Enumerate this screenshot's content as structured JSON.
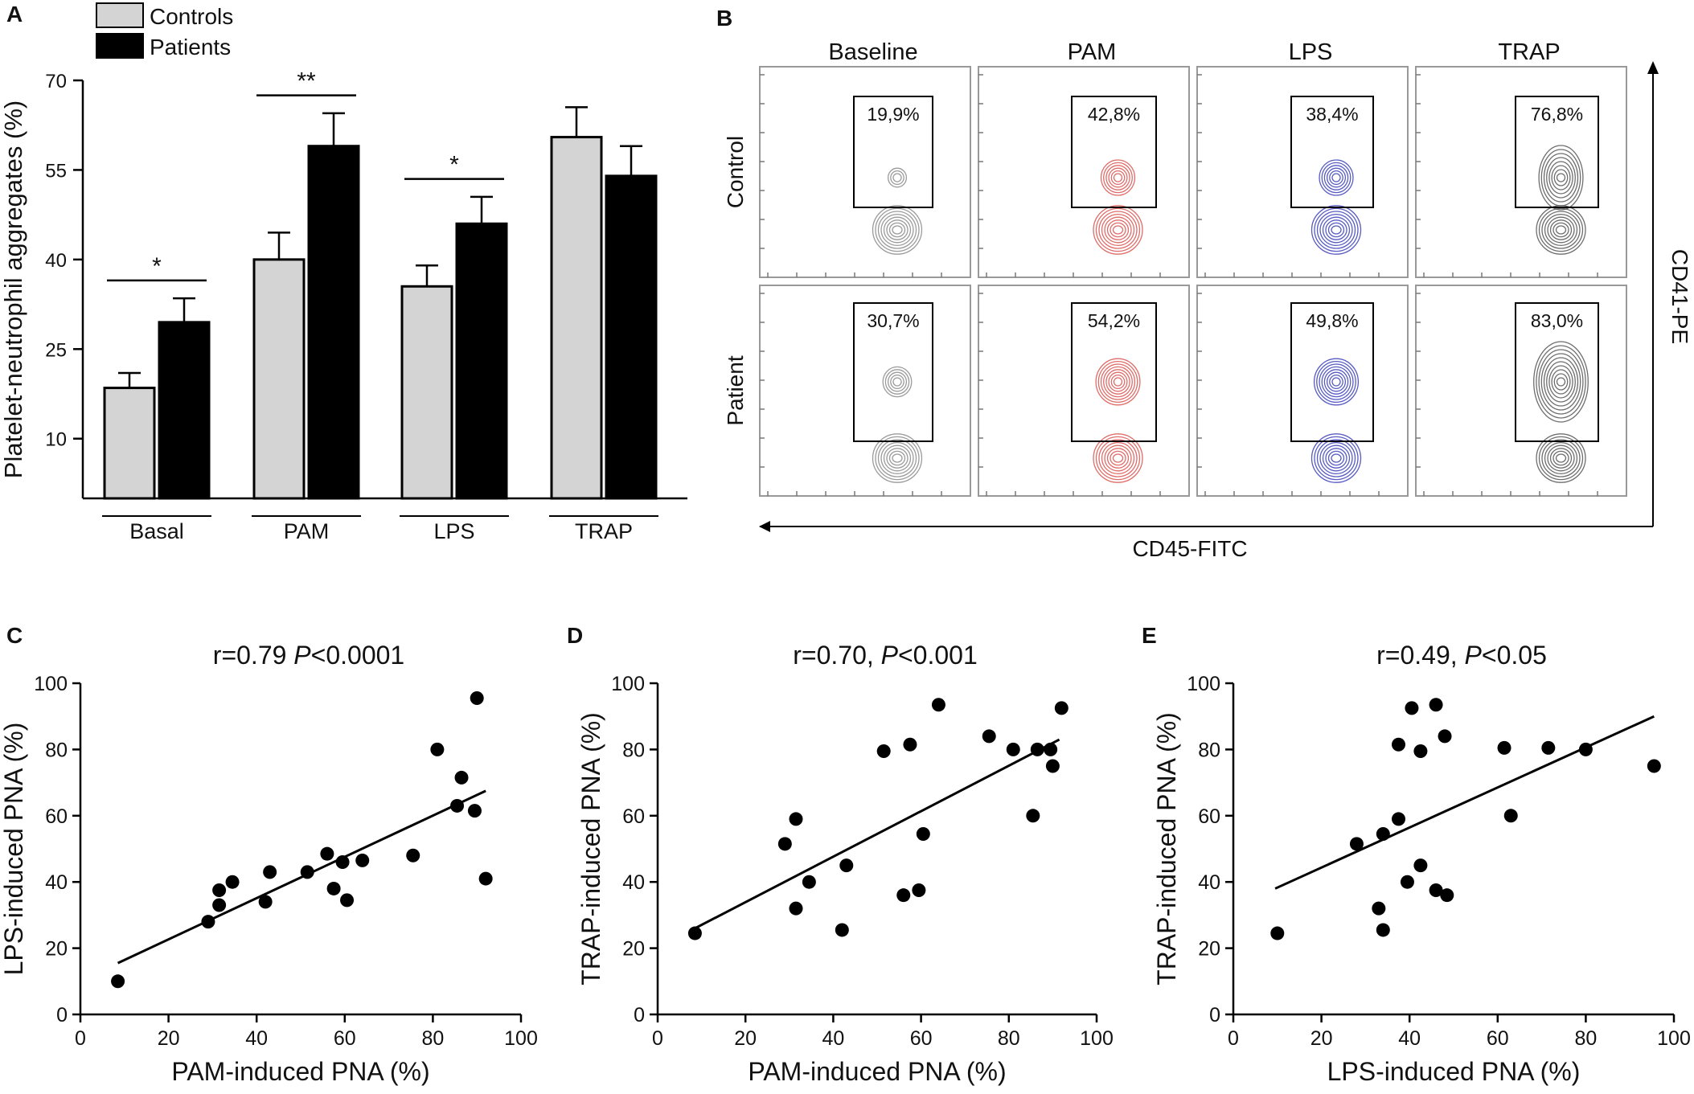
{
  "panels": {
    "A": "A",
    "B": "B",
    "C": "C",
    "D": "D",
    "E": "E"
  },
  "chart_data": [
    {
      "id": "A",
      "type": "bar",
      "title": "",
      "ylabel": "Platelet-neutrophil aggregates (%)",
      "xlabel": "",
      "ylim": [
        0,
        70
      ],
      "yaxis_start": 0,
      "yticks": [
        "10",
        "25",
        "40",
        "55",
        "70"
      ],
      "ytick_values": [
        10,
        25,
        40,
        55,
        70
      ],
      "categories": [
        "Basal",
        "PAM",
        "LPS",
        "TRAP"
      ],
      "series": [
        {
          "name": "Controls",
          "color": "#d4d4d4",
          "values": [
            18.5,
            40,
            35.5,
            60.5
          ],
          "errors": [
            2.5,
            4.5,
            3.5,
            5
          ]
        },
        {
          "name": "Patients",
          "color": "#000000",
          "values": [
            29.5,
            59,
            46,
            54
          ],
          "errors": [
            4,
            5.5,
            4.5,
            5
          ]
        }
      ],
      "significance": [
        "*",
        "**",
        "*",
        ""
      ],
      "legend_position": "top-left"
    },
    {
      "id": "B",
      "type": "contour-grid",
      "columns": [
        "Baseline",
        "PAM",
        "LPS",
        "TRAP"
      ],
      "rows": [
        "Control",
        "Patient"
      ],
      "gate_percentages": [
        [
          "19,9%",
          "42,8%",
          "38,4%",
          "76,8%"
        ],
        [
          "30,7%",
          "54,2%",
          "49,8%",
          "83,0%"
        ]
      ],
      "colors": [
        "#8a8a8a",
        "#d9534f",
        "#3b3fb8",
        "#555555"
      ],
      "xlabel": "CD45-FITC",
      "ylabel": "CD41-PE"
    },
    {
      "id": "C",
      "type": "scatter",
      "title_stat": "r=0.79 ",
      "title_p": "P",
      "title_rest": "<0.0001",
      "xlabel": "PAM-induced PNA (%)",
      "ylabel": "LPS-induced PNA (%)",
      "xlim": [
        0,
        100
      ],
      "ylim": [
        0,
        100
      ],
      "xticks": [
        "0",
        "20",
        "40",
        "60",
        "80",
        "100"
      ],
      "yticks": [
        "0",
        "20",
        "40",
        "60",
        "80",
        "100"
      ],
      "points": [
        [
          8.5,
          10
        ],
        [
          29,
          28
        ],
        [
          31.5,
          33
        ],
        [
          31.5,
          37.5
        ],
        [
          34.5,
          40
        ],
        [
          42,
          34
        ],
        [
          43,
          43
        ],
        [
          51.5,
          43
        ],
        [
          56,
          48.5
        ],
        [
          57.5,
          38
        ],
        [
          59.5,
          46
        ],
        [
          60.5,
          34.5
        ],
        [
          64,
          46.5
        ],
        [
          75.5,
          48
        ],
        [
          81,
          80
        ],
        [
          85.5,
          63
        ],
        [
          86.5,
          71.5
        ],
        [
          89.5,
          61.5
        ],
        [
          90,
          95.5
        ],
        [
          92,
          41
        ]
      ],
      "fit": [
        [
          8.5,
          15.5
        ],
        [
          92,
          67.5
        ]
      ]
    },
    {
      "id": "D",
      "type": "scatter",
      "title_stat": "r=0.70, ",
      "title_p": "P",
      "title_rest": "<0.001",
      "xlabel": "PAM-induced PNA (%)",
      "ylabel": "TRAP-induced PNA (%)",
      "xlim": [
        0,
        100
      ],
      "ylim": [
        0,
        100
      ],
      "xticks": [
        "0",
        "20",
        "40",
        "60",
        "80",
        "100"
      ],
      "yticks": [
        "0",
        "20",
        "40",
        "60",
        "80",
        "100"
      ],
      "points": [
        [
          8.5,
          24.5
        ],
        [
          29,
          51.5
        ],
        [
          31.5,
          59
        ],
        [
          31.5,
          32
        ],
        [
          34.5,
          40
        ],
        [
          42,
          25.5
        ],
        [
          43,
          45
        ],
        [
          51.5,
          79.5
        ],
        [
          56,
          36
        ],
        [
          57.5,
          81.5
        ],
        [
          59.5,
          37.5
        ],
        [
          60.5,
          54.5
        ],
        [
          64,
          93.5
        ],
        [
          75.5,
          84
        ],
        [
          81,
          80
        ],
        [
          85.5,
          60
        ],
        [
          86.5,
          80
        ],
        [
          89.5,
          80
        ],
        [
          90,
          75
        ],
        [
          92,
          92.5
        ]
      ],
      "fit": [
        [
          8.5,
          26
        ],
        [
          91.5,
          83
        ]
      ]
    },
    {
      "id": "E",
      "type": "scatter",
      "title_stat": "r=0.49, ",
      "title_p": "P",
      "title_rest": "<0.05",
      "xlabel": "LPS-induced PNA (%)",
      "ylabel": "TRAP-induced PNA (%)",
      "xlim": [
        0,
        100
      ],
      "ylim": [
        0,
        100
      ],
      "xticks": [
        "0",
        "20",
        "40",
        "60",
        "80",
        "100"
      ],
      "yticks": [
        "0",
        "20",
        "40",
        "60",
        "80",
        "100"
      ],
      "points": [
        [
          10,
          24.5
        ],
        [
          28,
          51.5
        ],
        [
          33,
          32
        ],
        [
          34,
          25.5
        ],
        [
          34,
          54.5
        ],
        [
          37.5,
          59
        ],
        [
          37.5,
          81.5
        ],
        [
          39.5,
          40
        ],
        [
          40.5,
          92.5
        ],
        [
          42.5,
          45
        ],
        [
          42.5,
          79.5
        ],
        [
          46,
          93.5
        ],
        [
          46,
          37.5
        ],
        [
          48,
          84
        ],
        [
          48.5,
          36
        ],
        [
          61.5,
          80.5
        ],
        [
          63,
          60
        ],
        [
          71.5,
          80.5
        ],
        [
          80,
          80
        ],
        [
          95.5,
          75
        ]
      ],
      "fit": [
        [
          9.5,
          38
        ],
        [
          95.5,
          90
        ]
      ]
    }
  ]
}
